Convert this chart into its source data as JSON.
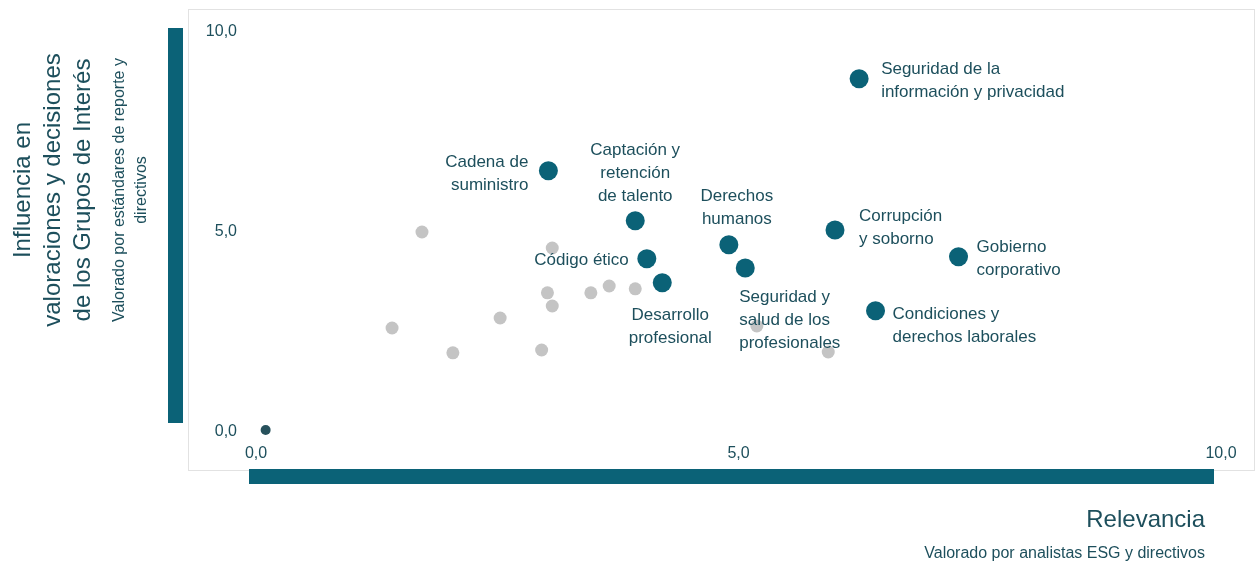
{
  "chart_data": {
    "type": "scatter",
    "xlabel": "Relevancia",
    "ylabel": "Influencia en\nvaloraciones y decisiones\nde los Grupos de Interés",
    "xlim": [
      0,
      10
    ],
    "ylim": [
      0,
      10
    ],
    "xticks": [
      {
        "value": 0,
        "label": "0,0"
      },
      {
        "value": 5,
        "label": "5,0"
      },
      {
        "value": 10,
        "label": "10,0"
      }
    ],
    "yticks": [
      {
        "value": 0,
        "label": "0,0"
      },
      {
        "value": 5,
        "label": "5,0"
      },
      {
        "value": 10,
        "label": "10,0"
      }
    ],
    "grid": false,
    "marker": "circle",
    "series": [
      {
        "color": "#c4c4c4",
        "x": [
          1.72,
          3.07,
          3.02,
          3.07,
          3.47,
          3.66,
          3.93,
          1.41,
          2.53,
          2.04,
          2.96,
          5.19,
          5.93
        ],
        "values": [
          4.95,
          4.55,
          3.43,
          3.1,
          3.43,
          3.6,
          3.53,
          2.55,
          2.8,
          1.93,
          2,
          2.6,
          1.95
        ]
      },
      {
        "color": "#27515c",
        "x": [
          0.1
        ],
        "values": [
          0
        ]
      },
      {
        "color": "#0b6277",
        "x": [
          6.25,
          3.03,
          3.93,
          4.9,
          6,
          7.28,
          4.05,
          5.07,
          4.21,
          6.42
        ],
        "values": [
          8.78,
          6.48,
          5.23,
          4.63,
          5,
          4.33,
          4.28,
          4.05,
          3.68,
          2.98
        ]
      }
    ],
    "annotations": [
      {
        "text": "Seguridad de la\ninformación y privacidad",
        "x": 6.25,
        "y": 8.78
      },
      {
        "text": "Cadena de\nsuministro",
        "x": 3.03,
        "y": 6.48
      },
      {
        "text": "Captación y\nretención\nde talento",
        "x": 3.93,
        "y": 5.23
      },
      {
        "text": "Derechos\nhumanos",
        "x": 4.9,
        "y": 4.63
      },
      {
        "text": "Corrupción\ny soborno",
        "x": 6,
        "y": 5
      },
      {
        "text": "Gobierno\ncorporativo",
        "x": 7.28,
        "y": 4.33
      },
      {
        "text": "Código ético",
        "x": 4.05,
        "y": 4.28
      },
      {
        "text": "Seguridad y\nsalud de los\nprofesionales",
        "x": 5.07,
        "y": 4.05
      },
      {
        "text": "Desarrollo\nprofesional",
        "x": 4.21,
        "y": 3.68
      },
      {
        "text": "Condiciones y\nderechos laborales",
        "x": 6.42,
        "y": 2.98
      },
      "Valorado por estándares de reporte y\ndirectivos",
      "Valorado por analistas ESG y directivos"
    ]
  }
}
